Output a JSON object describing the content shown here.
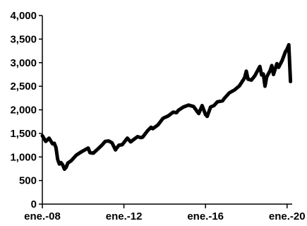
{
  "chart_data": {
    "type": "line",
    "title": "",
    "xlabel": "",
    "ylabel": "",
    "ylim": [
      0,
      4000
    ],
    "yticks": [
      0,
      500,
      1000,
      1500,
      2000,
      2500,
      3000,
      3500,
      4000
    ],
    "ytick_labels": [
      "0",
      "500",
      "1,000",
      "1,500",
      "2,000",
      "2,500",
      "3,000",
      "3,500",
      "4,000"
    ],
    "xlim": [
      "2008-01",
      "2020-04"
    ],
    "xticks": [
      "2008-01",
      "2012-01",
      "2016-01",
      "2020-01"
    ],
    "xtick_labels": [
      "ene.-08",
      "ene.-12",
      "ene.-16",
      "ene.-20"
    ],
    "grid": false,
    "legend": "none",
    "line_color": "#000000",
    "series": [
      {
        "x": [
          "2008-01",
          "2008-03",
          "2008-05",
          "2008-07",
          "2008-08",
          "2008-09",
          "2008-10",
          "2008-11",
          "2008-12",
          "2009-01",
          "2009-02",
          "2009-03",
          "2009-04",
          "2009-06",
          "2009-09",
          "2009-12",
          "2010-04",
          "2010-05",
          "2010-07",
          "2010-10",
          "2010-12",
          "2011-02",
          "2011-04",
          "2011-06",
          "2011-08",
          "2011-10",
          "2011-12",
          "2012-03",
          "2012-05",
          "2012-06",
          "2012-09",
          "2012-11",
          "2012-12",
          "2013-03",
          "2013-05",
          "2013-06",
          "2013-09",
          "2013-12",
          "2014-03",
          "2014-06",
          "2014-08",
          "2014-09",
          "2014-12",
          "2015-03",
          "2015-06",
          "2015-08",
          "2015-09",
          "2015-11",
          "2016-01",
          "2016-02",
          "2016-04",
          "2016-06",
          "2016-08",
          "2016-11",
          "2016-12",
          "2017-03",
          "2017-06",
          "2017-09",
          "2017-12",
          "2018-01",
          "2018-02",
          "2018-04",
          "2018-06",
          "2018-09",
          "2018-10",
          "2018-11",
          "2018-12",
          "2019-01",
          "2019-03",
          "2019-04",
          "2019-05",
          "2019-07",
          "2019-08",
          "2019-10",
          "2019-12",
          "2020-01",
          "2020-02",
          "2020-03"
        ],
        "values": [
          1450,
          1330,
          1400,
          1280,
          1290,
          1200,
          950,
          850,
          880,
          830,
          740,
          780,
          870,
          920,
          1040,
          1110,
          1190,
          1090,
          1080,
          1180,
          1250,
          1330,
          1340,
          1300,
          1150,
          1250,
          1260,
          1400,
          1320,
          1350,
          1430,
          1410,
          1420,
          1560,
          1630,
          1600,
          1680,
          1820,
          1870,
          1950,
          1940,
          1990,
          2060,
          2100,
          2070,
          1970,
          1920,
          2090,
          1900,
          1860,
          2060,
          2090,
          2170,
          2190,
          2240,
          2360,
          2420,
          2510,
          2680,
          2820,
          2650,
          2630,
          2720,
          2920,
          2740,
          2760,
          2500,
          2700,
          2830,
          2940,
          2750,
          2980,
          2900,
          3040,
          3230,
          3290,
          3380,
          2600
        ]
      }
    ]
  }
}
